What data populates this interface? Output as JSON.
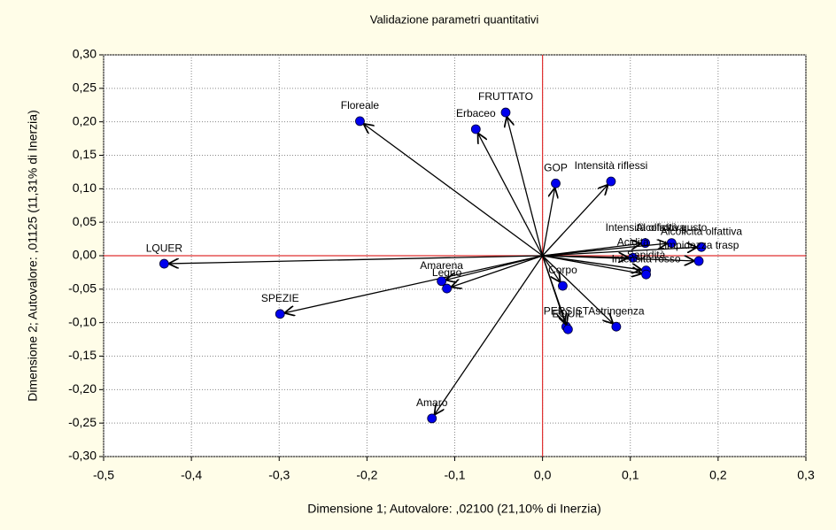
{
  "chart_data": {
    "type": "scatter",
    "title": "Validazione parametri quantitativi",
    "xlabel": "Dimensione 1; Autovalore: ,02100 (21,10% di Inerzia)",
    "ylabel": "Dimensione 2; Autovalore: ,01125 (11,31% di Inerzia)",
    "labels": [
      "LQUER",
      "SPEZIE",
      "Floreale",
      "FRUTTATO",
      "Erbaceo",
      "GOP",
      "Intensità riflessi",
      "Amarena",
      "Legno",
      "Amaro",
      "Corpo",
      "PERSIST",
      "EQUIL",
      "Astringenza",
      "Intensità olfattiva",
      "Alcolicità gusto",
      "Alcolicità olfattiva",
      "Limpidezza trasp",
      "Acidità",
      "Sapidità",
      "Intensità rosso"
    ],
    "x": [
      -0.431,
      -0.299,
      -0.208,
      -0.042,
      -0.076,
      0.015,
      0.078,
      -0.115,
      -0.109,
      -0.126,
      0.023,
      0.027,
      0.029,
      0.084,
      0.117,
      0.147,
      0.181,
      0.178,
      0.103,
      0.118,
      0.118
    ],
    "values": [
      -0.012,
      -0.087,
      0.201,
      0.214,
      0.189,
      0.108,
      0.111,
      -0.038,
      -0.049,
      -0.243,
      -0.045,
      -0.106,
      -0.11,
      -0.106,
      0.019,
      0.019,
      0.013,
      -0.008,
      -0.003,
      -0.022,
      -0.028
    ],
    "color": "#0000ee",
    "xlim": [
      -0.5,
      0.3
    ],
    "xticks": [
      {
        "value": -0.5,
        "label": "-0,5"
      },
      {
        "value": -0.4,
        "label": "-0,4"
      },
      {
        "value": -0.3,
        "label": "-0,3"
      },
      {
        "value": -0.2,
        "label": "-0,2"
      },
      {
        "value": -0.1,
        "label": "-0,1"
      },
      {
        "value": 0,
        "label": "0,0"
      },
      {
        "value": 0.1,
        "label": "0,1"
      },
      {
        "value": 0.2,
        "label": "0,2"
      },
      {
        "value": 0.3,
        "label": "0,3"
      }
    ],
    "ylim": [
      -0.3,
      0.3
    ],
    "yticks": [
      {
        "value": -0.3,
        "label": "-0,30"
      },
      {
        "value": -0.25,
        "label": "-0,25"
      },
      {
        "value": -0.2,
        "label": "-0,20"
      },
      {
        "value": -0.15,
        "label": "-0,15"
      },
      {
        "value": -0.1,
        "label": "-0,10"
      },
      {
        "value": -0.05,
        "label": "-0,05"
      },
      {
        "value": 0,
        "label": "0,00"
      },
      {
        "value": 0.05,
        "label": "0,05"
      },
      {
        "value": 0.1,
        "label": "0,10"
      },
      {
        "value": 0.15,
        "label": "0,15"
      },
      {
        "value": 0.2,
        "label": "0,20"
      },
      {
        "value": 0.25,
        "label": "0,25"
      },
      {
        "value": 0.3,
        "label": "0,30"
      }
    ],
    "grid": true
  }
}
